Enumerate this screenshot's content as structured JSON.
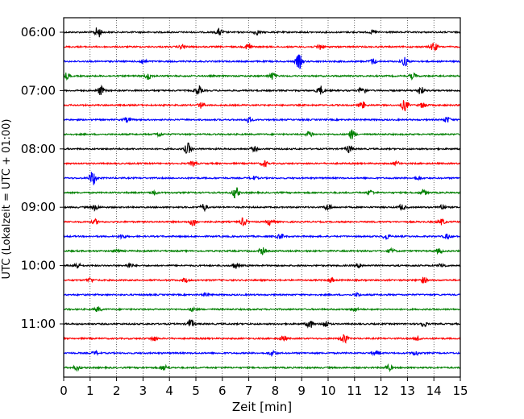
{
  "chart_data": {
    "type": "line",
    "title": "",
    "xlabel": "Zeit  [min]",
    "ylabel": "UTC (Lokalzeit = UTC + 01:00)",
    "xlim": [
      0,
      15
    ],
    "x_ticks": [
      "0",
      "1",
      "2",
      "3",
      "4",
      "5",
      "6",
      "7",
      "8",
      "9",
      "10",
      "11",
      "12",
      "13",
      "14",
      "15"
    ],
    "y_tick_labels": [
      "06:00",
      "07:00",
      "08:00",
      "09:00",
      "10:00",
      "11:00"
    ],
    "y_tick_rows": [
      0,
      4,
      8,
      12,
      16,
      20
    ],
    "grid": "vertical dotted",
    "trace_interval_minutes": 15,
    "series_colors": [
      "#000000",
      "#ff0000",
      "#0000ff",
      "#008000"
    ],
    "traces": [
      {
        "start": "06:00",
        "color": "#000000",
        "bursts": [
          [
            1.3,
            1.0
          ],
          [
            5.9,
            0.6
          ],
          [
            7.3,
            0.4
          ],
          [
            11.7,
            0.3
          ]
        ]
      },
      {
        "start": "06:15",
        "color": "#ff0000",
        "bursts": [
          [
            4.5,
            0.4
          ],
          [
            7.0,
            0.7
          ],
          [
            9.7,
            0.5
          ],
          [
            14.0,
            0.8
          ]
        ]
      },
      {
        "start": "06:30",
        "color": "#0000ff",
        "bursts": [
          [
            3.0,
            0.4
          ],
          [
            8.9,
            1.3
          ],
          [
            11.7,
            0.5
          ],
          [
            12.9,
            0.8
          ]
        ]
      },
      {
        "start": "06:45",
        "color": "#008000",
        "bursts": [
          [
            0.1,
            0.5
          ],
          [
            3.2,
            0.6
          ],
          [
            7.9,
            0.6
          ],
          [
            13.2,
            0.5
          ]
        ]
      },
      {
        "start": "07:00",
        "color": "#000000",
        "bursts": [
          [
            1.4,
            0.8
          ],
          [
            5.1,
            0.8
          ],
          [
            9.7,
            0.8
          ],
          [
            11.3,
            0.8
          ],
          [
            13.5,
            0.7
          ]
        ]
      },
      {
        "start": "07:15",
        "color": "#ff0000",
        "bursts": [
          [
            5.2,
            0.5
          ],
          [
            11.3,
            0.6
          ],
          [
            12.9,
            1.0
          ],
          [
            13.6,
            0.5
          ]
        ]
      },
      {
        "start": "07:30",
        "color": "#0000ff",
        "bursts": [
          [
            2.4,
            0.4
          ],
          [
            7.0,
            0.5
          ],
          [
            14.5,
            0.5
          ]
        ]
      },
      {
        "start": "07:45",
        "color": "#008000",
        "bursts": [
          [
            3.6,
            0.4
          ],
          [
            9.3,
            0.5
          ],
          [
            10.9,
            0.8
          ]
        ]
      },
      {
        "start": "08:00",
        "color": "#000000",
        "bursts": [
          [
            4.7,
            1.0
          ],
          [
            7.2,
            0.4
          ],
          [
            10.8,
            0.7
          ]
        ]
      },
      {
        "start": "08:15",
        "color": "#ff0000",
        "bursts": [
          [
            4.9,
            0.4
          ],
          [
            7.6,
            0.5
          ],
          [
            12.6,
            0.3
          ]
        ]
      },
      {
        "start": "08:30",
        "color": "#0000ff",
        "bursts": [
          [
            1.1,
            1.3
          ],
          [
            7.2,
            0.3
          ],
          [
            13.4,
            0.3
          ]
        ]
      },
      {
        "start": "08:45",
        "color": "#008000",
        "bursts": [
          [
            3.4,
            0.4
          ],
          [
            6.5,
            1.0
          ],
          [
            11.6,
            0.4
          ],
          [
            13.6,
            0.5
          ]
        ]
      },
      {
        "start": "09:00",
        "color": "#000000",
        "bursts": [
          [
            1.2,
            0.5
          ],
          [
            5.3,
            0.6
          ],
          [
            10.0,
            0.6
          ],
          [
            12.8,
            0.5
          ],
          [
            14.3,
            0.5
          ]
        ]
      },
      {
        "start": "09:15",
        "color": "#ff0000",
        "bursts": [
          [
            1.2,
            0.4
          ],
          [
            4.9,
            0.7
          ],
          [
            6.8,
            0.7
          ],
          [
            7.8,
            0.6
          ],
          [
            14.3,
            0.5
          ]
        ]
      },
      {
        "start": "09:30",
        "color": "#0000ff",
        "bursts": [
          [
            2.2,
            0.4
          ],
          [
            8.2,
            0.5
          ],
          [
            12.2,
            0.5
          ],
          [
            14.5,
            0.4
          ]
        ]
      },
      {
        "start": "09:45",
        "color": "#008000",
        "bursts": [
          [
            2.0,
            0.3
          ],
          [
            7.5,
            0.6
          ],
          [
            12.4,
            0.4
          ],
          [
            14.2,
            0.4
          ]
        ]
      },
      {
        "start": "10:00",
        "color": "#000000",
        "bursts": [
          [
            0.5,
            0.5
          ],
          [
            2.5,
            0.4
          ],
          [
            6.5,
            0.5
          ],
          [
            11.2,
            0.4
          ],
          [
            14.3,
            0.4
          ]
        ]
      },
      {
        "start": "10:15",
        "color": "#ff0000",
        "bursts": [
          [
            1.0,
            0.4
          ],
          [
            4.6,
            0.4
          ],
          [
            10.1,
            0.4
          ],
          [
            13.6,
            0.5
          ]
        ]
      },
      {
        "start": "10:30",
        "color": "#0000ff",
        "bursts": [
          [
            5.4,
            0.3
          ],
          [
            11.1,
            0.3
          ]
        ]
      },
      {
        "start": "10:45",
        "color": "#008000",
        "bursts": [
          [
            1.3,
            0.4
          ],
          [
            4.9,
            0.3
          ],
          [
            11.0,
            0.4
          ]
        ]
      },
      {
        "start": "11:00",
        "color": "#000000",
        "bursts": [
          [
            4.8,
            0.8
          ],
          [
            9.3,
            0.8
          ],
          [
            9.9,
            0.6
          ],
          [
            13.6,
            0.5
          ]
        ]
      },
      {
        "start": "11:15",
        "color": "#ff0000",
        "bursts": [
          [
            3.4,
            0.4
          ],
          [
            8.3,
            0.5
          ],
          [
            10.6,
            0.9
          ],
          [
            13.4,
            0.4
          ]
        ]
      },
      {
        "start": "11:30",
        "color": "#0000ff",
        "bursts": [
          [
            1.2,
            0.3
          ],
          [
            7.9,
            0.5
          ],
          [
            11.8,
            0.3
          ],
          [
            13.3,
            0.4
          ]
        ]
      },
      {
        "start": "11:45",
        "color": "#008000",
        "bursts": [
          [
            0.5,
            0.4
          ],
          [
            3.8,
            0.5
          ],
          [
            12.3,
            0.5
          ]
        ]
      }
    ]
  }
}
